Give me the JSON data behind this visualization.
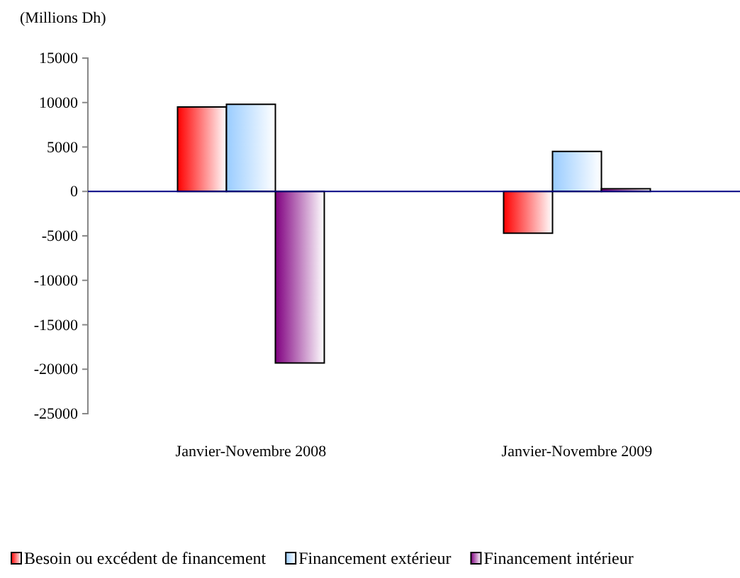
{
  "chart_data": {
    "type": "bar",
    "ylabel": "(Millions Dh)",
    "categories": [
      "Janvier-Novembre  2008",
      "Janvier-Novembre 2009"
    ],
    "series": [
      {
        "name": "Besoin ou excédent de financement",
        "color": "#ff0000",
        "values": [
          9500,
          -4700
        ]
      },
      {
        "name": "Financement extérieur",
        "color": "#99ccff",
        "values": [
          9800,
          4500
        ]
      },
      {
        "name": "Financement intérieur",
        "color": "#800080",
        "values": [
          -19300,
          300
        ]
      }
    ],
    "ylim": [
      -25000,
      15000
    ],
    "yticks": [
      -25000,
      -20000,
      -15000,
      -10000,
      -5000,
      0,
      5000,
      10000,
      15000
    ],
    "ref_lines": [
      {
        "axis": "y",
        "value": 0,
        "color": "#000080"
      }
    ],
    "grid": false,
    "legend": "bottom"
  }
}
